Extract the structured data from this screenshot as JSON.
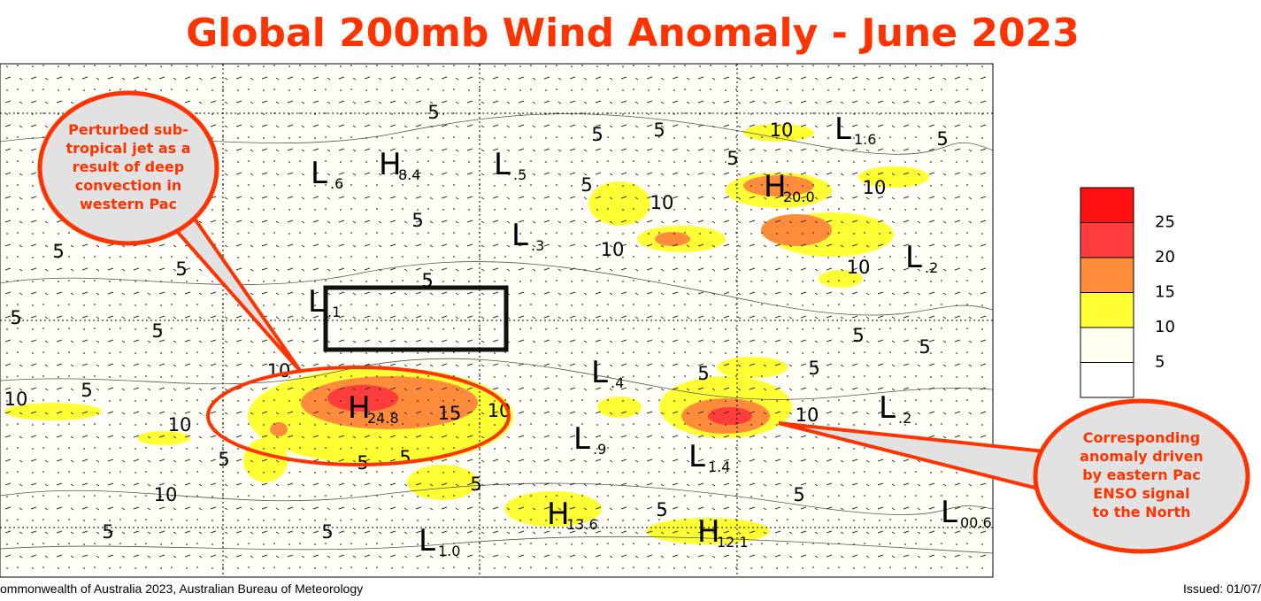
{
  "title": "Global 200mb Wind Anomaly - June 2023",
  "callouts": [
    {
      "lines": [
        "Perturbed sub-",
        "tropical jet as a",
        "result of deep",
        "convection in",
        "western Pac"
      ]
    },
    {
      "lines": [
        "Corresponding",
        "anomaly driven",
        "by eastern Pac",
        "ENSO signal",
        "to the North"
      ]
    }
  ],
  "legend": {
    "colors": [
      "#ff1010",
      "#ff3c3c",
      "#ff8c3a",
      "#ffff33",
      "#fffff0",
      "#ffffff"
    ],
    "labels": [
      "25",
      "20",
      "15",
      "10",
      "5"
    ]
  },
  "centers": [
    {
      "letter": "L",
      "value": ".6"
    },
    {
      "letter": "H",
      "value": "8.4"
    },
    {
      "letter": "L",
      "value": ".5"
    },
    {
      "letter": "L",
      "value": ".3"
    },
    {
      "letter": "L",
      "value": ".1"
    },
    {
      "letter": "H",
      "value": "24.8"
    },
    {
      "letter": "L",
      "value": ".4"
    },
    {
      "letter": "L",
      "value": ".9"
    },
    {
      "letter": "L",
      "value": "1.4"
    },
    {
      "letter": "H",
      "value": "13.6"
    },
    {
      "letter": "H",
      "value": "12.1"
    },
    {
      "letter": "L",
      "value": "1.0"
    },
    {
      "letter": "L",
      "value": "00.6"
    },
    {
      "letter": "L",
      "value": ".2"
    },
    {
      "letter": "L",
      "value": ".2"
    },
    {
      "letter": "H",
      "value": "20.0"
    },
    {
      "letter": "L",
      "value": "1.6"
    }
  ],
  "contour_labels": [
    "5",
    "5",
    "5",
    "5",
    "5",
    "5",
    "5",
    "5",
    "5",
    "5",
    "5",
    "5",
    "5",
    "5",
    "5",
    "5",
    "5",
    "5",
    "5",
    "5",
    "5",
    "5",
    "5",
    "5",
    "5",
    "10",
    "10",
    "10",
    "10",
    "10",
    "10",
    "10",
    "10",
    "10",
    "10",
    "10",
    "15"
  ],
  "footer": {
    "left": "ommonwealth of Australia 2023, Australian Bureau of Meteorology",
    "right": "Issued: 01/07/"
  }
}
